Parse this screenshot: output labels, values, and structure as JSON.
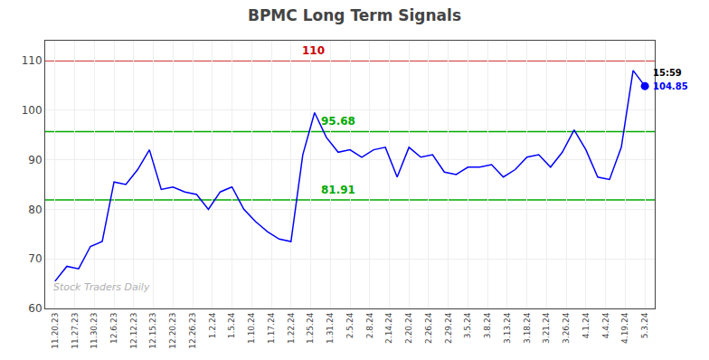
{
  "chart_data": {
    "type": "line",
    "title": "BPMC Long Term Signals",
    "x": [
      0,
      0.6,
      1.2,
      1.8,
      2.4,
      3,
      3.6,
      4.2,
      4.8,
      5.4,
      6,
      6.6,
      7.2,
      7.8,
      8.4,
      9,
      9.6,
      10.2,
      10.8,
      11.4,
      12,
      12.6,
      13.2,
      13.8,
      14.4,
      15,
      15.6,
      16.2,
      16.8,
      17.4,
      18,
      18.6,
      19.2,
      19.8,
      20.4,
      21,
      21.6,
      22.2,
      22.8,
      23.4,
      24,
      24.6,
      25.2,
      25.8,
      26.4,
      27,
      27.6,
      28.2,
      28.8,
      29.4,
      30
    ],
    "values": [
      65.5,
      68.5,
      68.0,
      72.5,
      73.5,
      85.5,
      85.0,
      88.0,
      92.0,
      84.0,
      84.5,
      83.5,
      83.0,
      80.0,
      83.5,
      84.5,
      80.0,
      77.5,
      75.5,
      74.0,
      73.5,
      91.0,
      99.5,
      94.5,
      91.5,
      92.0,
      90.5,
      92.0,
      92.5,
      86.5,
      92.5,
      90.5,
      91.0,
      87.5,
      87.0,
      88.5,
      88.5,
      89.0,
      86.5,
      88.0,
      90.5,
      91.0,
      88.5,
      91.5,
      96.0,
      92.0,
      86.5,
      86.0,
      92.5,
      108.0,
      104.85
    ],
    "color": "blue",
    "xlim": [
      -0.5,
      30.5
    ],
    "xticks": [
      {
        "value": 0,
        "label": "11.20.23"
      },
      {
        "value": 1,
        "label": "11.27.23"
      },
      {
        "value": 2,
        "label": "11.30.23"
      },
      {
        "value": 3,
        "label": "12.6.23"
      },
      {
        "value": 4,
        "label": "12.12.23"
      },
      {
        "value": 5,
        "label": "12.15.23"
      },
      {
        "value": 6,
        "label": "12.20.23"
      },
      {
        "value": 7,
        "label": "12.26.23"
      },
      {
        "value": 8,
        "label": "1.2.24"
      },
      {
        "value": 9,
        "label": "1.5.24"
      },
      {
        "value": 10,
        "label": "1.10.24"
      },
      {
        "value": 11,
        "label": "1.17.24"
      },
      {
        "value": 12,
        "label": "1.22.24"
      },
      {
        "value": 13,
        "label": "1.25.24"
      },
      {
        "value": 14,
        "label": "1.31.24"
      },
      {
        "value": 15,
        "label": "2.5.24"
      },
      {
        "value": 16,
        "label": "2.8.24"
      },
      {
        "value": 17,
        "label": "2.14.24"
      },
      {
        "value": 18,
        "label": "2.20.24"
      },
      {
        "value": 19,
        "label": "2.26.24"
      },
      {
        "value": 20,
        "label": "2.29.24"
      },
      {
        "value": 21,
        "label": "3.5.24"
      },
      {
        "value": 22,
        "label": "3.8.24"
      },
      {
        "value": 23,
        "label": "3.13.24"
      },
      {
        "value": 24,
        "label": "3.18.24"
      },
      {
        "value": 25,
        "label": "3.21.24"
      },
      {
        "value": 26,
        "label": "3.26.24"
      },
      {
        "value": 27,
        "label": "4.1.24"
      },
      {
        "value": 28,
        "label": "4.4.24"
      },
      {
        "value": 29,
        "label": "4.19.24"
      },
      {
        "value": 30,
        "label": "5.3.24"
      }
    ],
    "ylim": [
      60,
      114
    ],
    "yticks": [
      60,
      70,
      80,
      90,
      100,
      110
    ],
    "grid": true,
    "hlines": [
      {
        "value": 110,
        "label": "110",
        "color": "#cc0000"
      },
      {
        "value": 95.68,
        "label": "95.68",
        "color": "#00aa00"
      },
      {
        "value": 81.91,
        "label": "81.91",
        "color": "#00aa00"
      }
    ],
    "last_point_labels": {
      "time": "15:59",
      "price": "104.85",
      "time_color": "black",
      "price_color": "blue"
    },
    "watermark": "Stock Traders Daily"
  }
}
